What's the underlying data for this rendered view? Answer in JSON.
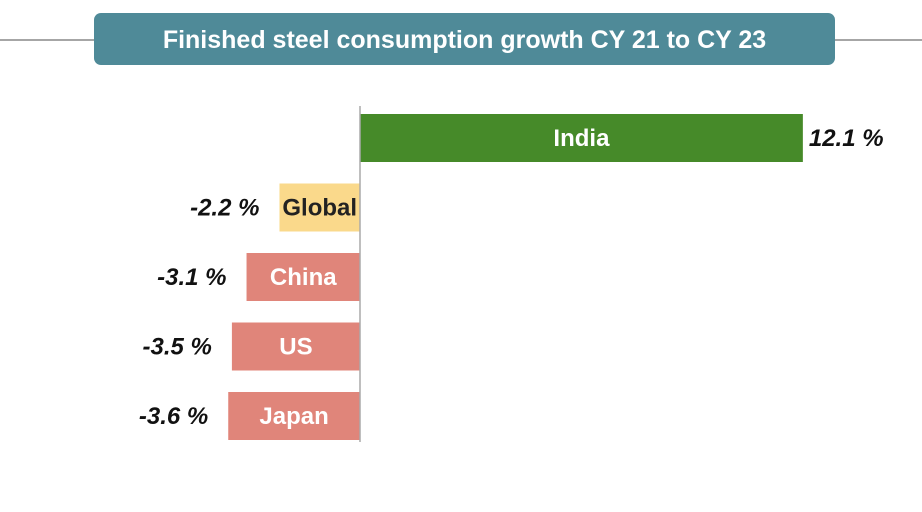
{
  "chart_data": {
    "type": "bar",
    "orientation": "horizontal",
    "title": "Finished steel consumption growth CY 21 to CY 23",
    "categories": [
      "India",
      "Global",
      "China",
      "US",
      "Japan"
    ],
    "values": [
      12.1,
      -2.2,
      -3.1,
      -3.5,
      -3.6
    ],
    "value_labels": [
      "12.1 %",
      "-2.2 %",
      "-3.1 %",
      "-3.5  %",
      "-3.6 %"
    ],
    "colors": [
      "#468a29",
      "#fad98b",
      "#e0857a",
      "#e0857a",
      "#e0857a"
    ],
    "label_colors": [
      "#ffffff",
      "#222222",
      "#ffffff",
      "#ffffff",
      "#ffffff"
    ],
    "title_bg": "#4f8a98",
    "axis_color": "#aaaaaa",
    "unit": "%",
    "grid": false,
    "legend": "none"
  }
}
